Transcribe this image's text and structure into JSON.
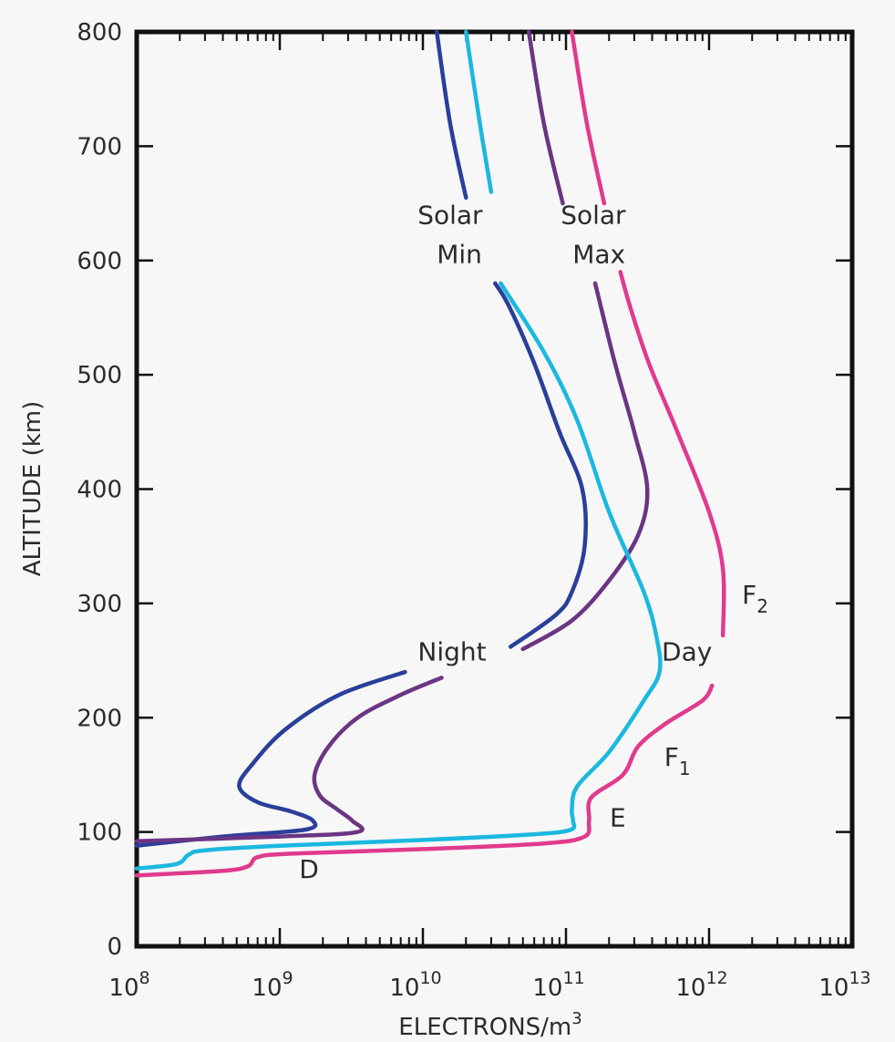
{
  "chart_data": {
    "type": "line",
    "xlabel": "ELECTRONS/m",
    "xlabel_sup": "3",
    "ylabel": "ALTITUDE (km)",
    "xscale": "log",
    "xlim": [
      100000000.0,
      10000000000000.0
    ],
    "ylim": [
      0,
      800
    ],
    "x_ticks": [
      {
        "base": "10",
        "exp": "8",
        "value": 100000000.0
      },
      {
        "base": "10",
        "exp": "9",
        "value": 1000000000.0
      },
      {
        "base": "10",
        "exp": "10",
        "value": 10000000000.0
      },
      {
        "base": "10",
        "exp": "11",
        "value": 100000000000.0
      },
      {
        "base": "10",
        "exp": "12",
        "value": 1000000000000.0
      },
      {
        "base": "10",
        "exp": "13",
        "value": 10000000000000.0
      }
    ],
    "y_ticks": [
      "0",
      "100",
      "200",
      "300",
      "400",
      "500",
      "600",
      "700",
      "800"
    ],
    "grid": false,
    "series": [
      {
        "color": "#2a3f9a",
        "points": [
          [
            100000000.0,
            88
          ],
          [
            400000000.0,
            96
          ],
          [
            1500000000.0,
            102
          ],
          [
            1700000000.0,
            110
          ],
          [
            1200000000.0,
            118
          ],
          [
            700000000.0,
            126
          ],
          [
            520000000.0,
            140
          ],
          [
            650000000.0,
            160
          ],
          [
            1100000000.0,
            190
          ],
          [
            2600000000.0,
            220
          ],
          [
            7500000000.0,
            240
          ]
        ],
        "upper": [
          [
            41000000000.0,
            262
          ],
          [
            85000000000.0,
            290
          ],
          [
            110000000000.0,
            310
          ],
          [
            135000000000.0,
            350
          ],
          [
            130000000000.0,
            400
          ],
          [
            90000000000.0,
            450
          ],
          [
            60000000000.0,
            510
          ],
          [
            40000000000.0,
            560
          ],
          [
            32000000000.0,
            580
          ]
        ],
        "top": [
          [
            20000000000.0,
            655
          ],
          [
            15500000000.0,
            720
          ],
          [
            12500000000.0,
            800
          ]
        ]
      },
      {
        "color": "#6b3584",
        "points": [
          [
            100000000.0,
            92
          ],
          [
            1000000000.0,
            96
          ],
          [
            3500000000.0,
            100
          ],
          [
            3200000000.0,
            110
          ],
          [
            2500000000.0,
            120
          ],
          [
            1900000000.0,
            132
          ],
          [
            1750000000.0,
            150
          ],
          [
            2200000000.0,
            175
          ],
          [
            3500000000.0,
            200
          ],
          [
            7000000000.0,
            220
          ],
          [
            13500000000.0,
            235
          ]
        ],
        "upper": [
          [
            50000000000.0,
            260
          ],
          [
            110000000000.0,
            285
          ],
          [
            200000000000.0,
            320
          ],
          [
            320000000000.0,
            360
          ],
          [
            370000000000.0,
            400
          ],
          [
            300000000000.0,
            450
          ],
          [
            220000000000.0,
            510
          ],
          [
            160000000000.0,
            580
          ]
        ],
        "top": [
          [
            95000000000.0,
            650
          ],
          [
            70000000000.0,
            720
          ],
          [
            55000000000.0,
            800
          ]
        ]
      },
      {
        "color": "#1bb8df",
        "points": [
          [
            100000000.0,
            68
          ],
          [
            190000000.0,
            72
          ],
          [
            230000000.0,
            80
          ],
          [
            300000000.0,
            84
          ],
          [
            1000000000.0,
            88
          ],
          [
            10000000000.0,
            93
          ],
          [
            60000000000.0,
            98
          ],
          [
            108000000000.0,
            102
          ],
          [
            112000000000.0,
            110
          ],
          [
            110000000000.0,
            120
          ],
          [
            120000000000.0,
            140
          ],
          [
            200000000000.0,
            170
          ],
          [
            350000000000.0,
            215
          ],
          [
            450000000000.0,
            240
          ],
          [
            430000000000.0,
            270
          ],
          [
            350000000000.0,
            310
          ],
          [
            200000000000.0,
            380
          ],
          [
            120000000000.0,
            460
          ],
          [
            70000000000.0,
            520
          ],
          [
            35000000000.0,
            580
          ]
        ],
        "top": [
          [
            30000000000.0,
            660
          ],
          [
            25000000000.0,
            720
          ],
          [
            20000000000.0,
            800
          ]
        ]
      },
      {
        "color": "#e03a8e",
        "points": [
          [
            100000000.0,
            62
          ],
          [
            400000000.0,
            66
          ],
          [
            600000000.0,
            70
          ],
          [
            700000000.0,
            78
          ],
          [
            1200000000.0,
            81
          ],
          [
            10000000000.0,
            85
          ],
          [
            70000000000.0,
            90
          ],
          [
            135000000000.0,
            96
          ],
          [
            145000000000.0,
            110
          ],
          [
            150000000000.0,
            130
          ],
          [
            250000000000.0,
            150
          ],
          [
            320000000000.0,
            175
          ],
          [
            500000000000.0,
            195
          ],
          [
            900000000000.0,
            215
          ],
          [
            1050000000000.0,
            228
          ]
        ],
        "upper": [
          [
            1250000000000.0,
            272
          ],
          [
            1250000000000.0,
            330
          ],
          [
            1000000000000.0,
            380
          ],
          [
            600000000000.0,
            450
          ],
          [
            380000000000.0,
            510
          ],
          [
            280000000000.0,
            560
          ],
          [
            240000000000.0,
            590
          ]
        ],
        "top": [
          [
            185000000000.0,
            650
          ],
          [
            140000000000.0,
            720
          ],
          [
            110000000000.0,
            800
          ]
        ]
      }
    ],
    "annotations": [
      {
        "text": "Solar",
        "x": 15500000000.0,
        "y": 632
      },
      {
        "text": "Min",
        "x": 18000000000.0,
        "y": 598
      },
      {
        "text": "Solar",
        "x": 155000000000.0,
        "y": 632
      },
      {
        "text": "Max",
        "x": 170000000000.0,
        "y": 598
      },
      {
        "text": "Night",
        "x": 16000000000.0,
        "y": 250
      },
      {
        "text": "Day",
        "x": 700000000000.0,
        "y": 250
      },
      {
        "text": "F",
        "sub": "2",
        "x": 2100000000000.0,
        "y": 300
      },
      {
        "text": "F",
        "sub": "1",
        "x": 600000000000.0,
        "y": 158
      },
      {
        "text": "E",
        "x": 230000000000.0,
        "y": 105
      },
      {
        "text": "D",
        "x": 1600000000.0,
        "y": 60
      }
    ]
  }
}
